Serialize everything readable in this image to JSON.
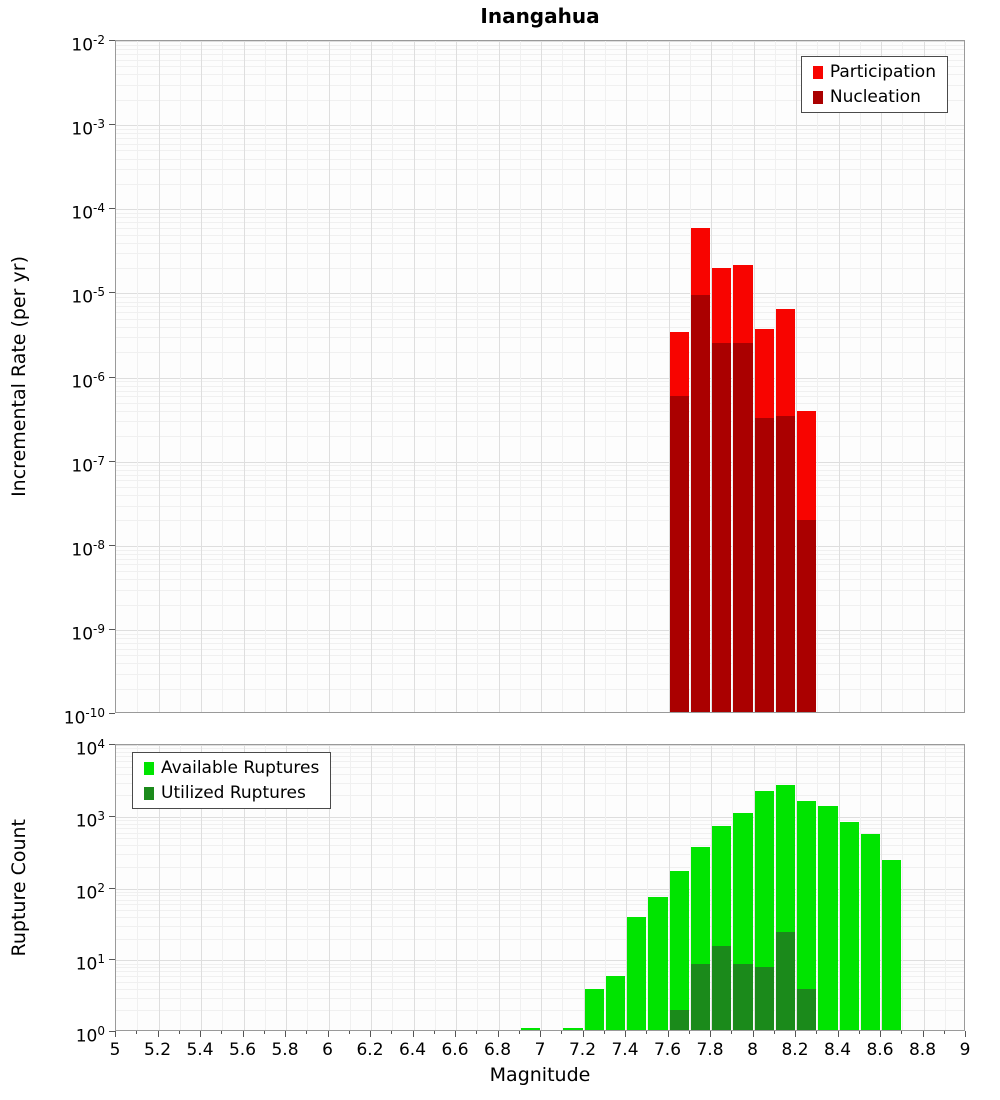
{
  "figure_title": "Inangahua",
  "chart_data": [
    {
      "type": "bar",
      "name": "incremental-rate",
      "title": "Inangahua",
      "xlabel": "",
      "ylabel": "Incremental Rate (per yr)",
      "yscale": "log",
      "ylim": [
        1e-10,
        0.01
      ],
      "xlim": [
        5,
        9
      ],
      "bin_width": 0.1,
      "grid": true,
      "legend_position": "top-right",
      "yticks": [
        -2,
        -3,
        -4,
        -5,
        -6,
        -7,
        -8,
        -9,
        -10
      ],
      "series": [
        {
          "name": "Participation",
          "color": "#f80400",
          "bins": [
            {
              "m": 7.65,
              "count": 3.5e-06
            },
            {
              "m": 7.75,
              "count": 6e-05
            },
            {
              "m": 7.85,
              "count": 2e-05
            },
            {
              "m": 7.95,
              "count": 2.2e-05
            },
            {
              "m": 8.05,
              "count": 3.8e-06
            },
            {
              "m": 8.15,
              "count": 6.5e-06
            },
            {
              "m": 8.25,
              "count": 4e-07
            }
          ]
        },
        {
          "name": "Nucleation",
          "color": "#aa0000",
          "bins": [
            {
              "m": 7.65,
              "count": 6e-07
            },
            {
              "m": 7.75,
              "count": 9.5e-06
            },
            {
              "m": 7.85,
              "count": 2.6e-06
            },
            {
              "m": 7.95,
              "count": 2.6e-06
            },
            {
              "m": 8.05,
              "count": 3.3e-07
            },
            {
              "m": 8.15,
              "count": 3.5e-07
            },
            {
              "m": 8.25,
              "count": 2e-08
            }
          ]
        }
      ]
    },
    {
      "type": "bar",
      "name": "rupture-count",
      "title": "",
      "xlabel": "Magnitude",
      "ylabel": "Rupture Count",
      "yscale": "log",
      "ylim": [
        1,
        10000
      ],
      "xlim": [
        5,
        9
      ],
      "bin_width": 0.1,
      "grid": true,
      "legend_position": "top-left",
      "yticks": [
        4,
        3,
        2,
        1,
        0
      ],
      "xticks": [
        5,
        5.2,
        5.4,
        5.6,
        5.8,
        6,
        6.2,
        6.4,
        6.6,
        6.8,
        7,
        7.2,
        7.4,
        7.6,
        7.8,
        8,
        8.2,
        8.4,
        8.6,
        8.8,
        9
      ],
      "xtick_labels": [
        "5",
        "5.2",
        "5.4",
        "5.6",
        "5.8",
        "6",
        "6.2",
        "6.4",
        "6.6",
        "6.8",
        "7",
        "7.2",
        "7.4",
        "7.6",
        "7.8",
        "8",
        "8.2",
        "8.4",
        "8.6",
        "8.8",
        "9"
      ],
      "series": [
        {
          "name": "Available Ruptures",
          "color": "#00e400",
          "bins": [
            {
              "m": 6.95,
              "count": 1
            },
            {
              "m": 7.15,
              "count": 1
            },
            {
              "m": 7.25,
              "count": 4
            },
            {
              "m": 7.35,
              "count": 6
            },
            {
              "m": 7.45,
              "count": 40
            },
            {
              "m": 7.55,
              "count": 76
            },
            {
              "m": 7.65,
              "count": 175
            },
            {
              "m": 7.75,
              "count": 380
            },
            {
              "m": 7.85,
              "count": 740
            },
            {
              "m": 7.95,
              "count": 1130
            },
            {
              "m": 8.05,
              "count": 2300
            },
            {
              "m": 8.15,
              "count": 2800
            },
            {
              "m": 8.25,
              "count": 1650
            },
            {
              "m": 8.35,
              "count": 1400
            },
            {
              "m": 8.45,
              "count": 850
            },
            {
              "m": 8.55,
              "count": 580
            },
            {
              "m": 8.65,
              "count": 250
            }
          ]
        },
        {
          "name": "Utilized Ruptures",
          "color": "#1b8a1b",
          "bins": [
            {
              "m": 7.65,
              "count": 2
            },
            {
              "m": 7.75,
              "count": 9
            },
            {
              "m": 7.85,
              "count": 16
            },
            {
              "m": 7.95,
              "count": 9
            },
            {
              "m": 8.05,
              "count": 8
            },
            {
              "m": 8.15,
              "count": 25
            },
            {
              "m": 8.25,
              "count": 4
            }
          ]
        }
      ]
    }
  ]
}
